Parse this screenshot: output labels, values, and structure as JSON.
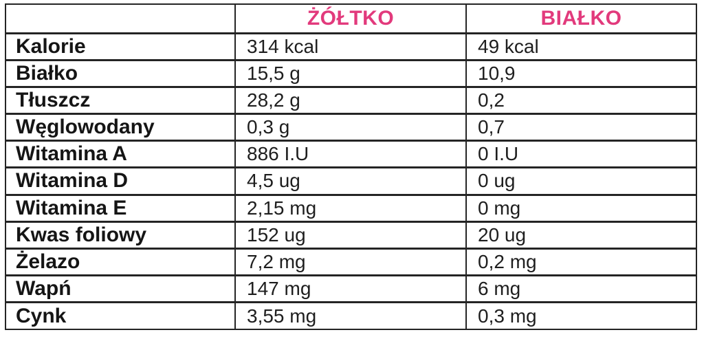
{
  "colors": {
    "header_text": "#e23a7c",
    "body_text": "#1e1e1e",
    "border": "#242424",
    "background": "#ffffff"
  },
  "chart_data": {
    "type": "table",
    "title": "",
    "columns": [
      "",
      "ŻÓŁTKO",
      "BIAŁKO"
    ],
    "rows": [
      {
        "label": "Kalorie",
        "zoltko": "314 kcal",
        "bialko": "49 kcal"
      },
      {
        "label": "Białko",
        "zoltko": "15,5 g",
        "bialko": "10,9"
      },
      {
        "label": "Tłuszcz",
        "zoltko": "28,2 g",
        "bialko": "0,2"
      },
      {
        "label": "Węglowodany",
        "zoltko": "0,3 g",
        "bialko": "0,7"
      },
      {
        "label": "Witamina A",
        "zoltko": "886 I.U",
        "bialko": "0 I.U"
      },
      {
        "label": "Witamina D",
        "zoltko": "4,5 ug",
        "bialko": "0 ug"
      },
      {
        "label": "Witamina E",
        "zoltko": "2,15 mg",
        "bialko": "0 mg"
      },
      {
        "label": "Kwas foliowy",
        "zoltko": "152 ug",
        "bialko": "20 ug"
      },
      {
        "label": "Żelazo",
        "zoltko": "7,2 mg",
        "bialko": "0,2 mg"
      },
      {
        "label": "Wapń",
        "zoltko": "147 mg",
        "bialko": "6 mg"
      },
      {
        "label": "Cynk",
        "zoltko": "3,55 mg",
        "bialko": "0,3 mg"
      }
    ]
  }
}
